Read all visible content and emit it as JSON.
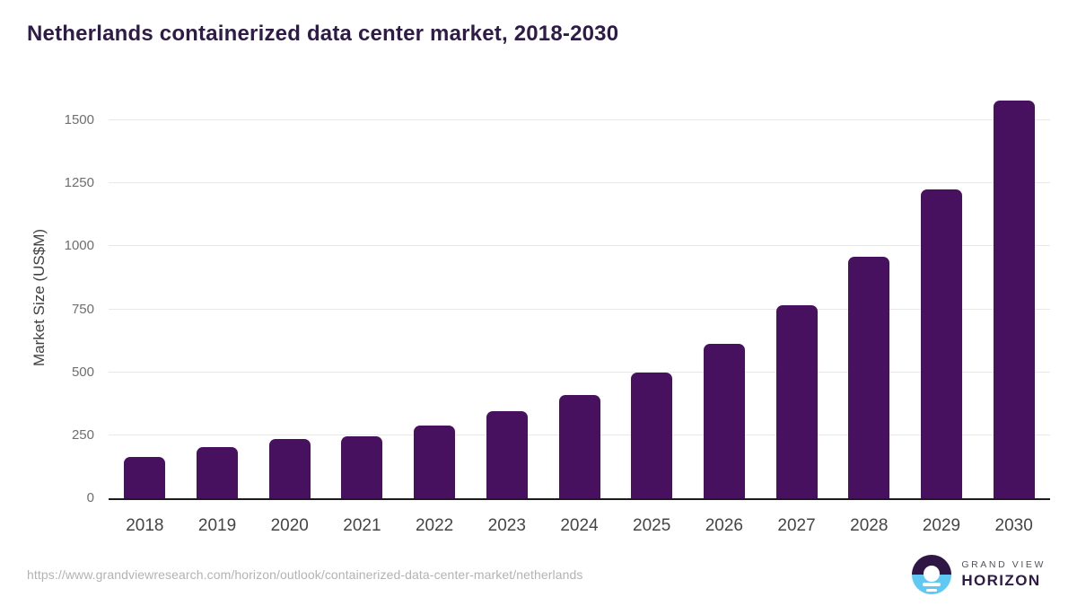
{
  "chart_data": {
    "type": "bar",
    "title": "Netherlands containerized data center market, 2018-2030",
    "categories": [
      "2018",
      "2019",
      "2020",
      "2021",
      "2022",
      "2023",
      "2024",
      "2025",
      "2026",
      "2027",
      "2028",
      "2029",
      "2030"
    ],
    "values": [
      165,
      202,
      234,
      246,
      289,
      344,
      411,
      500,
      612,
      765,
      960,
      1225,
      1577
    ],
    "series": [
      {
        "name": "Market Size (US$M)",
        "values": [
          165,
          202,
          234,
          246,
          289,
          344,
          411,
          500,
          612,
          765,
          960,
          1225,
          1577
        ]
      }
    ],
    "xlabel": "",
    "ylabel": "Market Size (US$M)",
    "ylim": [
      0,
      1600
    ],
    "yticks": [
      0,
      250,
      500,
      750,
      1000,
      1250,
      1500
    ],
    "grid": "horizontal",
    "legend": "none",
    "bar_color": "#48115f"
  },
  "colors": {
    "title_text": "#2e1b47",
    "bar": "#48115f",
    "axis_line": "#1c1c1c",
    "gridline": "#e8e8e9",
    "y_tick_label": "#6f6f6f",
    "x_tick_label": "#454545",
    "url_text": "#b3b3b3",
    "logo_purple": "#2f1644",
    "logo_blue": "#5fc8f3"
  },
  "footer": {
    "source_url": "https://www.grandviewresearch.com/horizon/outlook/containerized-data-center-market/netherlands",
    "logo": {
      "top_text": "GRAND VIEW",
      "bottom_text": "HORIZON"
    }
  }
}
